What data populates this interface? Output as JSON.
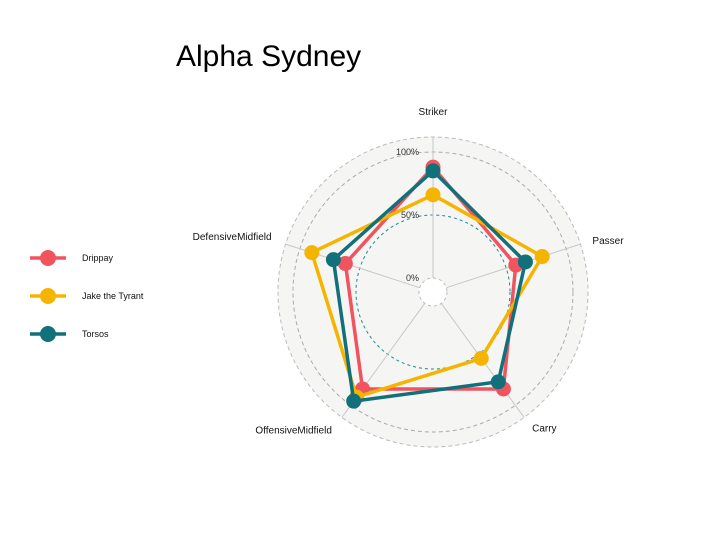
{
  "chart_data": {
    "type": "radar",
    "title": "Alpha Sydney",
    "axes": [
      "Striker",
      "Passer",
      "Carry",
      "OffensiveMidfield",
      "DefensiveMidfield"
    ],
    "grid_labels": [
      "0%",
      "50%",
      "100%"
    ],
    "grid_values": [
      0,
      0.5,
      1.0
    ],
    "range": [
      0,
      1
    ],
    "legend_position": "left",
    "series": [
      {
        "name": "Drippay",
        "color": "#f0555f",
        "values": [
          0.88,
          0.58,
          0.84,
          0.84,
          0.62
        ]
      },
      {
        "name": "Jake the Tyrant",
        "color": "#f5b400",
        "values": [
          0.66,
          0.8,
          0.54,
          0.92,
          0.9
        ]
      },
      {
        "name": "Torsos",
        "color": "#117079",
        "values": [
          0.85,
          0.66,
          0.77,
          0.96,
          0.72
        ]
      }
    ]
  }
}
